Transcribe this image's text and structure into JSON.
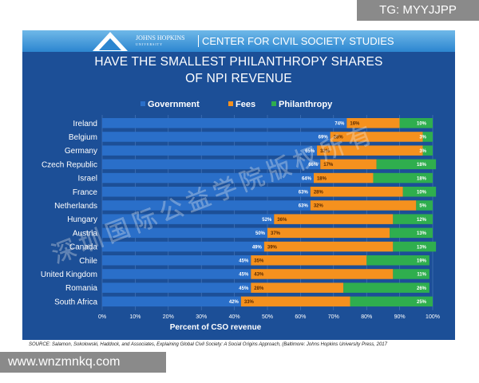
{
  "header": {
    "university": "JOHNS HOPKINS",
    "university_sub": "UNIVERSITY",
    "center": "CENTER FOR CIVIL SOCIETY STUDIES"
  },
  "headline": {
    "line1": "HAVE THE SMALLEST PHILANTHROPY SHARES",
    "line2": "OF NPI REVENUE"
  },
  "watermarks": {
    "top_right": "TG: MYYJJPP",
    "bottom_left": "www.wnzmnkq.com",
    "diagonal": "深圳国际公益学院版权所有"
  },
  "source": "SOURCE: Salamon, Sokolowski, Haddock, and Associates, Explaining Global Civil Society: A Social Origins Approach, (Baltimore: Johns Hopkins University Press, 2017",
  "colors": {
    "government": "#2a6fc9",
    "fees": "#f5911e",
    "philanthropy": "#2fae4e",
    "background": "#1c4f97"
  },
  "chart_data": {
    "type": "bar",
    "orientation": "horizontal",
    "stacked": true,
    "categories": [
      "Ireland",
      "Belgium",
      "Germany",
      "Czech Republic",
      "Israel",
      "France",
      "Netherlands",
      "Hungary",
      "Austria",
      "Canada",
      "Chile",
      "United Kingdom",
      "Romania",
      "South Africa"
    ],
    "series": [
      {
        "name": "Government",
        "values": [
          74,
          69,
          65,
          66,
          64,
          63,
          63,
          52,
          50,
          49,
          45,
          45,
          45,
          42
        ],
        "labels": [
          "74%",
          "69%",
          "65%",
          "66%",
          "64%",
          "63%",
          "63%",
          "52%",
          "50%",
          "49%",
          "45%",
          "45%",
          "45%",
          "42%"
        ]
      },
      {
        "name": "Fees",
        "values": [
          16,
          28,
          32,
          17,
          18,
          28,
          32,
          36,
          37,
          39,
          35,
          43,
          28,
          33
        ],
        "labels": [
          "16%",
          "28%",
          "32%",
          "17%",
          "18%",
          "28%",
          "32%",
          "36%",
          "37%",
          "39%",
          "35%",
          "43%",
          "28%",
          "33%"
        ]
      },
      {
        "name": "Philanthropy",
        "values": [
          10,
          3,
          3,
          18,
          18,
          10,
          5,
          12,
          13,
          13,
          19,
          11,
          26,
          25
        ],
        "labels": [
          "10%",
          "3%",
          "3%",
          "18%",
          "18%",
          "10%",
          "5%",
          "12%",
          "13%",
          "13%",
          "19%",
          "11%",
          "26%",
          "25%"
        ]
      }
    ],
    "xlabel": "Percent of CSO revenue",
    "xticks": [
      "0%",
      "10%",
      "20%",
      "30%",
      "40%",
      "50%",
      "60%",
      "70%",
      "80%",
      "90%",
      "100%"
    ],
    "xlim": [
      0,
      100
    ],
    "legend_position": "top",
    "grid": true
  }
}
